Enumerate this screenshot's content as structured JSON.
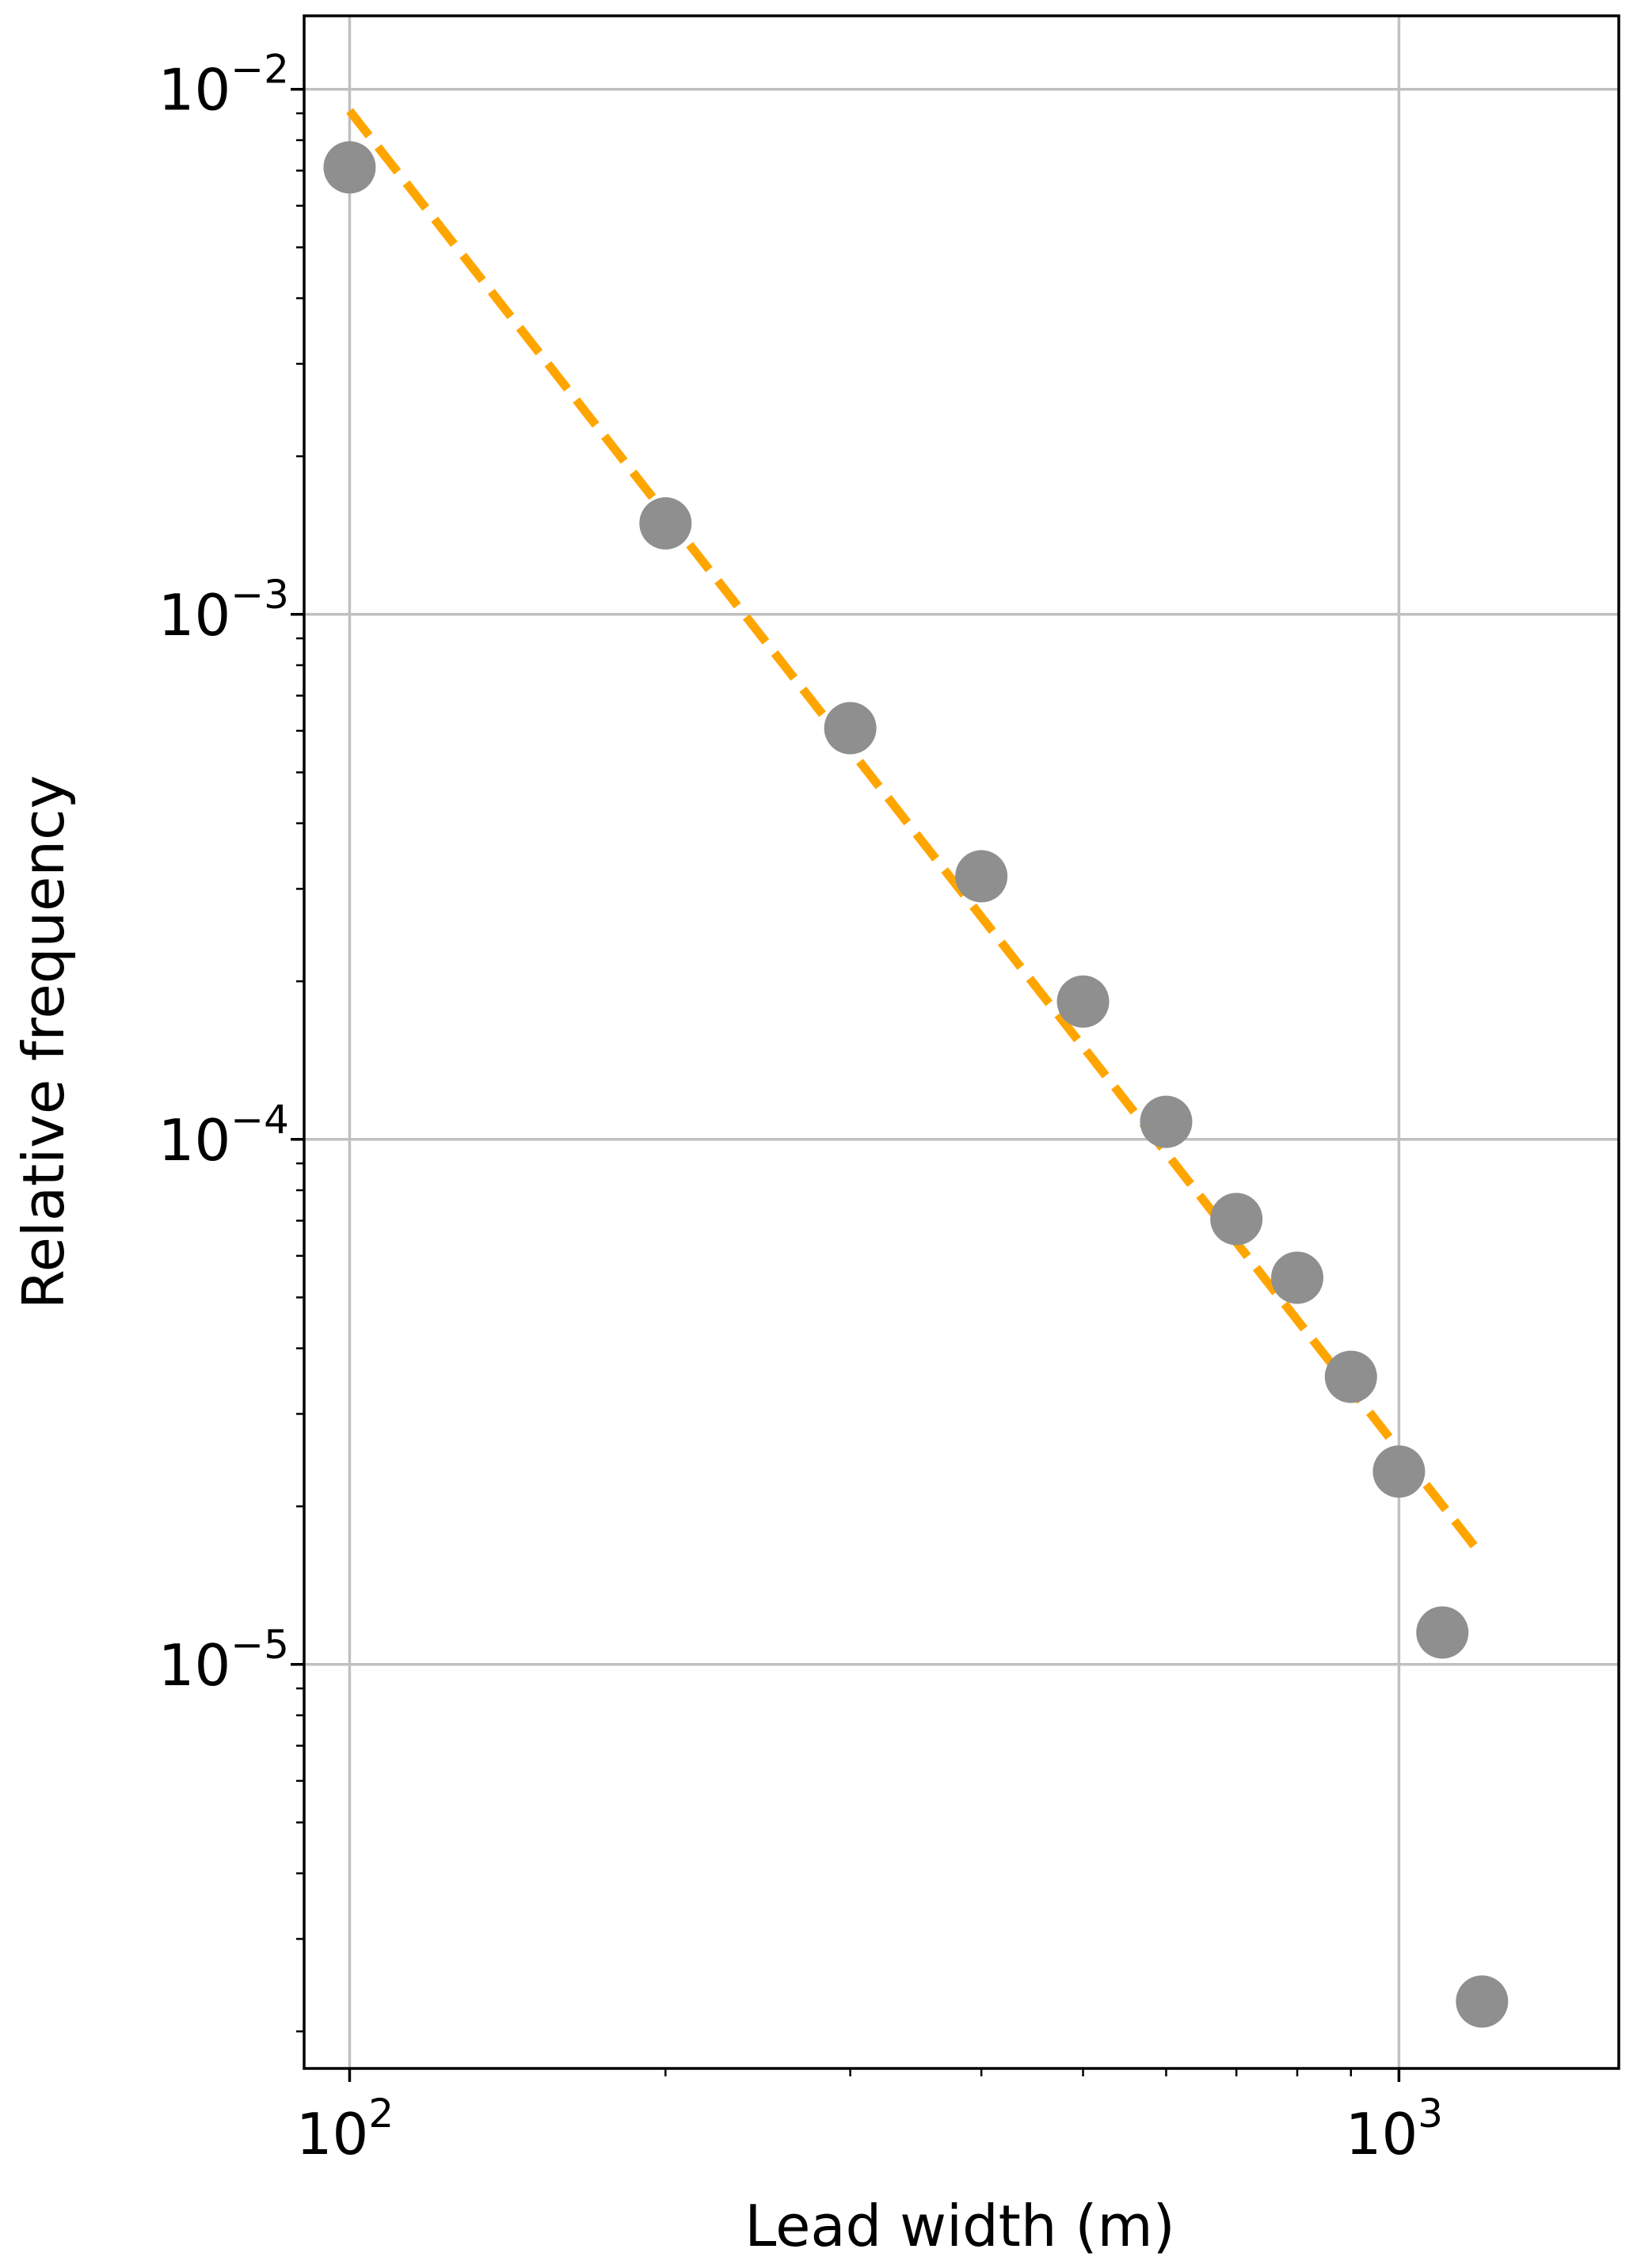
{
  "chart_data": {
    "type": "scatter",
    "xlabel": "Lead width (m)",
    "ylabel": "Relative frequency",
    "xscale": "log",
    "yscale": "log",
    "xlim": [
      90.5,
      1620
    ],
    "ylim": [
      1.7e-06,
      0.0138
    ],
    "grid": true,
    "x_ticks": [
      {
        "value": 100,
        "base": "10",
        "exp": "2"
      },
      {
        "value": 1000,
        "base": "10",
        "exp": "3"
      }
    ],
    "y_ticks": [
      {
        "value": 0.01,
        "base": "10",
        "exp": "−2"
      },
      {
        "value": 0.001,
        "base": "10",
        "exp": "−3"
      },
      {
        "value": 0.0001,
        "base": "10",
        "exp": "−4"
      },
      {
        "value": 1e-05,
        "base": "10",
        "exp": "−5"
      }
    ],
    "series": [
      {
        "kind": "points",
        "color": "#8f8f8f",
        "x": [
          100,
          200,
          300,
          400,
          500,
          600,
          700,
          800,
          900,
          1000,
          1100,
          1200
        ],
        "y": [
          0.0071,
          0.00149,
          0.000607,
          0.000317,
          0.000183,
          0.000108,
          7.05e-05,
          5.45e-05,
          3.53e-05,
          2.33e-05,
          1.15e-05,
          2.28e-06
        ]
      },
      {
        "kind": "fit",
        "color": "#ffa500",
        "line_style": "dashed",
        "x": [
          100,
          1200
        ],
        "y": [
          0.0091,
          1.61e-05
        ]
      }
    ]
  }
}
